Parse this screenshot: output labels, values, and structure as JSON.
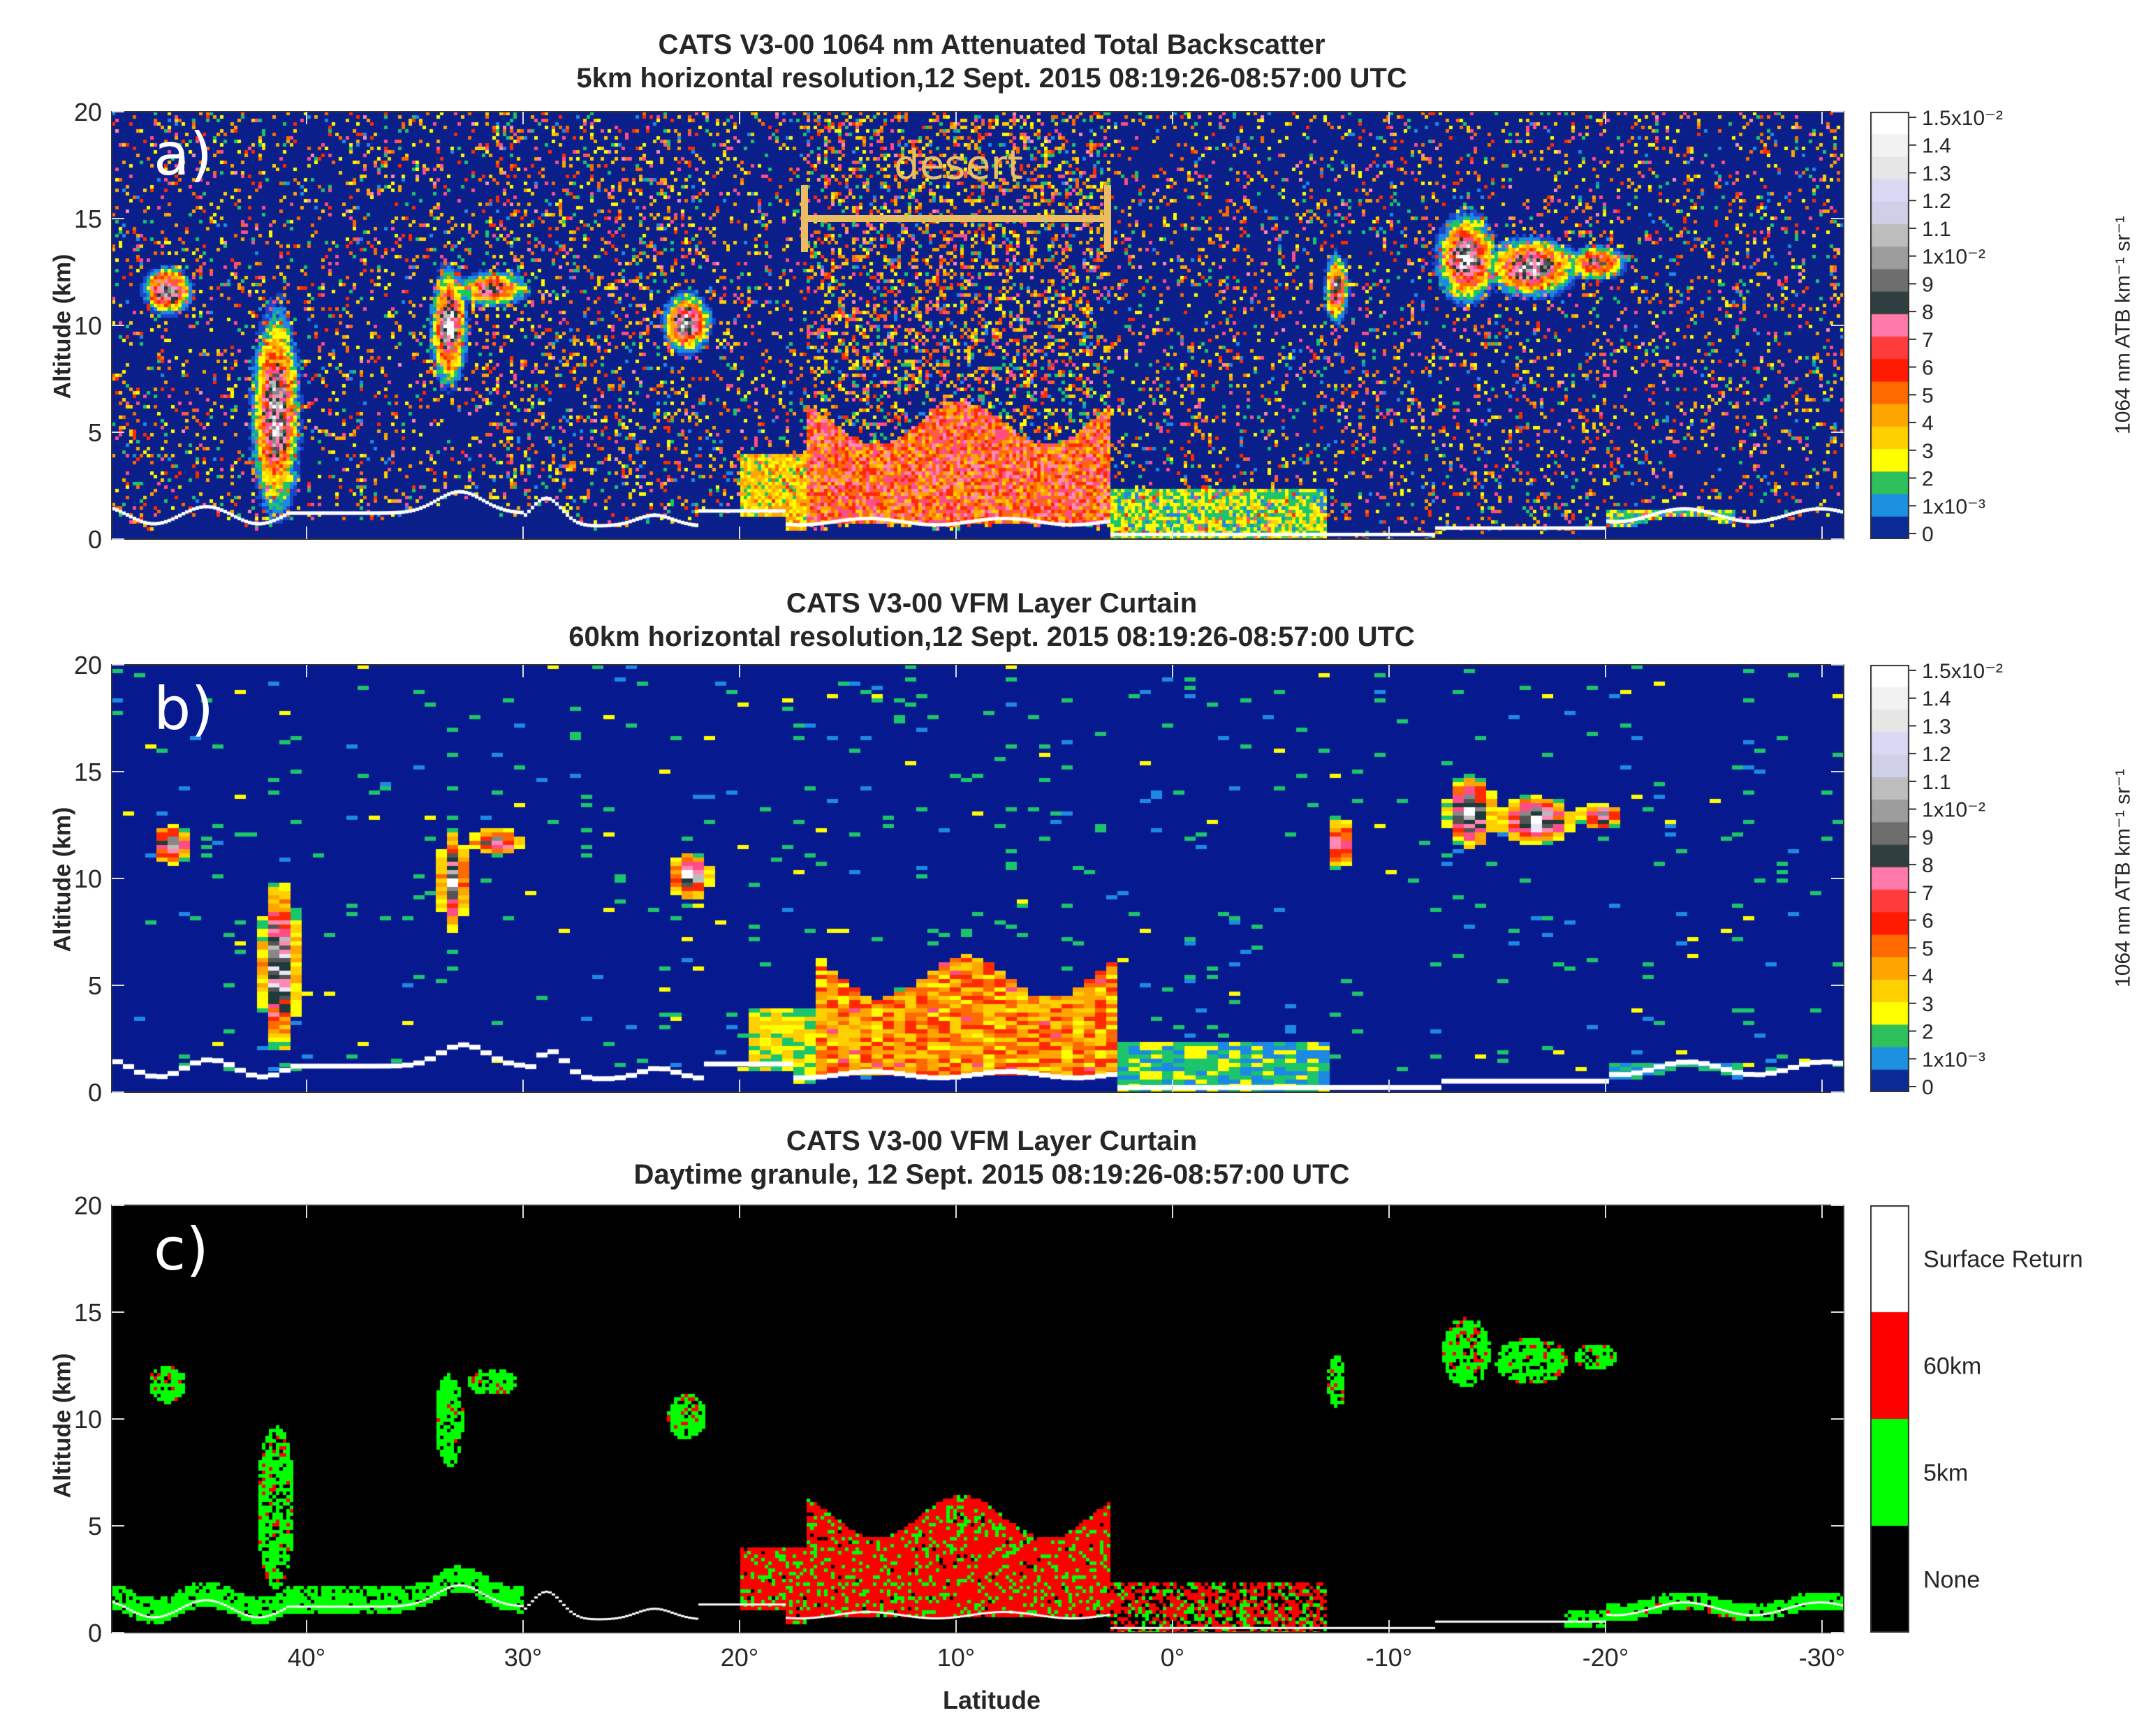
{
  "chart_data": [
    {
      "type": "heatmap",
      "panel_label": "a)",
      "title": "CATS V3-00 1064 nm Attenuated Total Backscatter",
      "subtitle": "5km horizontal resolution,12 Sept. 2015 08:19:26-08:57:00 UTC",
      "ylabel": "Altitude (km)",
      "ylim": [
        0,
        20
      ],
      "yticks": [
        "0",
        "5",
        "10",
        "15",
        "20"
      ],
      "xlim": [
        49,
        -31
      ],
      "annotation": "desert",
      "annotation_range": [
        17,
        3
      ],
      "colorbar": {
        "label": "1064 nm ATB km⁻¹ sr⁻¹",
        "ticks": [
          "1.5x10⁻²",
          "1.4",
          "1.3",
          "1.2",
          "1.1",
          "1x10⁻²",
          "9",
          "8",
          "7",
          "6",
          "5",
          "4",
          "3",
          "2",
          "1x10⁻³",
          "0"
        ]
      }
    },
    {
      "type": "heatmap",
      "panel_label": "b)",
      "title": "CATS V3-00 VFM Layer Curtain",
      "subtitle": "60km horizontal resolution,12 Sept. 2015 08:19:26-08:57:00 UTC",
      "ylabel": "Altitude (km)",
      "ylim": [
        0,
        20
      ],
      "yticks": [
        "0",
        "5",
        "10",
        "15",
        "20"
      ],
      "xlim": [
        49,
        -31
      ],
      "colorbar": {
        "label": "1064 nm ATB km⁻¹ sr⁻¹",
        "ticks": [
          "1.5x10⁻²",
          "1.4",
          "1.3",
          "1.2",
          "1.1",
          "1x10⁻²",
          "9",
          "8",
          "7",
          "6",
          "5",
          "4",
          "3",
          "2",
          "1x10⁻³",
          "0"
        ]
      }
    },
    {
      "type": "heatmap",
      "panel_label": "c)",
      "title": "CATS V3-00 VFM Layer Curtain",
      "subtitle": "Daytime granule, 12 Sept. 2015 08:19:26-08:57:00 UTC",
      "ylabel": "Altitude (km)",
      "xlabel": "Latitude",
      "ylim": [
        0,
        20
      ],
      "yticks": [
        "0",
        "5",
        "10",
        "15",
        "20"
      ],
      "xlim": [
        49,
        -31
      ],
      "xticks": [
        "40°",
        "30°",
        "20°",
        "10°",
        "0°",
        "-10°",
        "-20°",
        "-30°"
      ],
      "xtick_values": [
        40,
        30,
        20,
        10,
        0,
        -10,
        -20,
        -30
      ],
      "legend": [
        {
          "label": "Surface Return",
          "color": "#ffffff"
        },
        {
          "label": "60km",
          "color": "#ff0000"
        },
        {
          "label": "5km",
          "color": "#00ff00"
        },
        {
          "label": "None",
          "color": "#000000"
        }
      ]
    }
  ],
  "colors": {
    "background_a": "#0a1f8a",
    "background_b": "#06198f",
    "background_c": "#000000",
    "desert": "#e9bd62"
  }
}
